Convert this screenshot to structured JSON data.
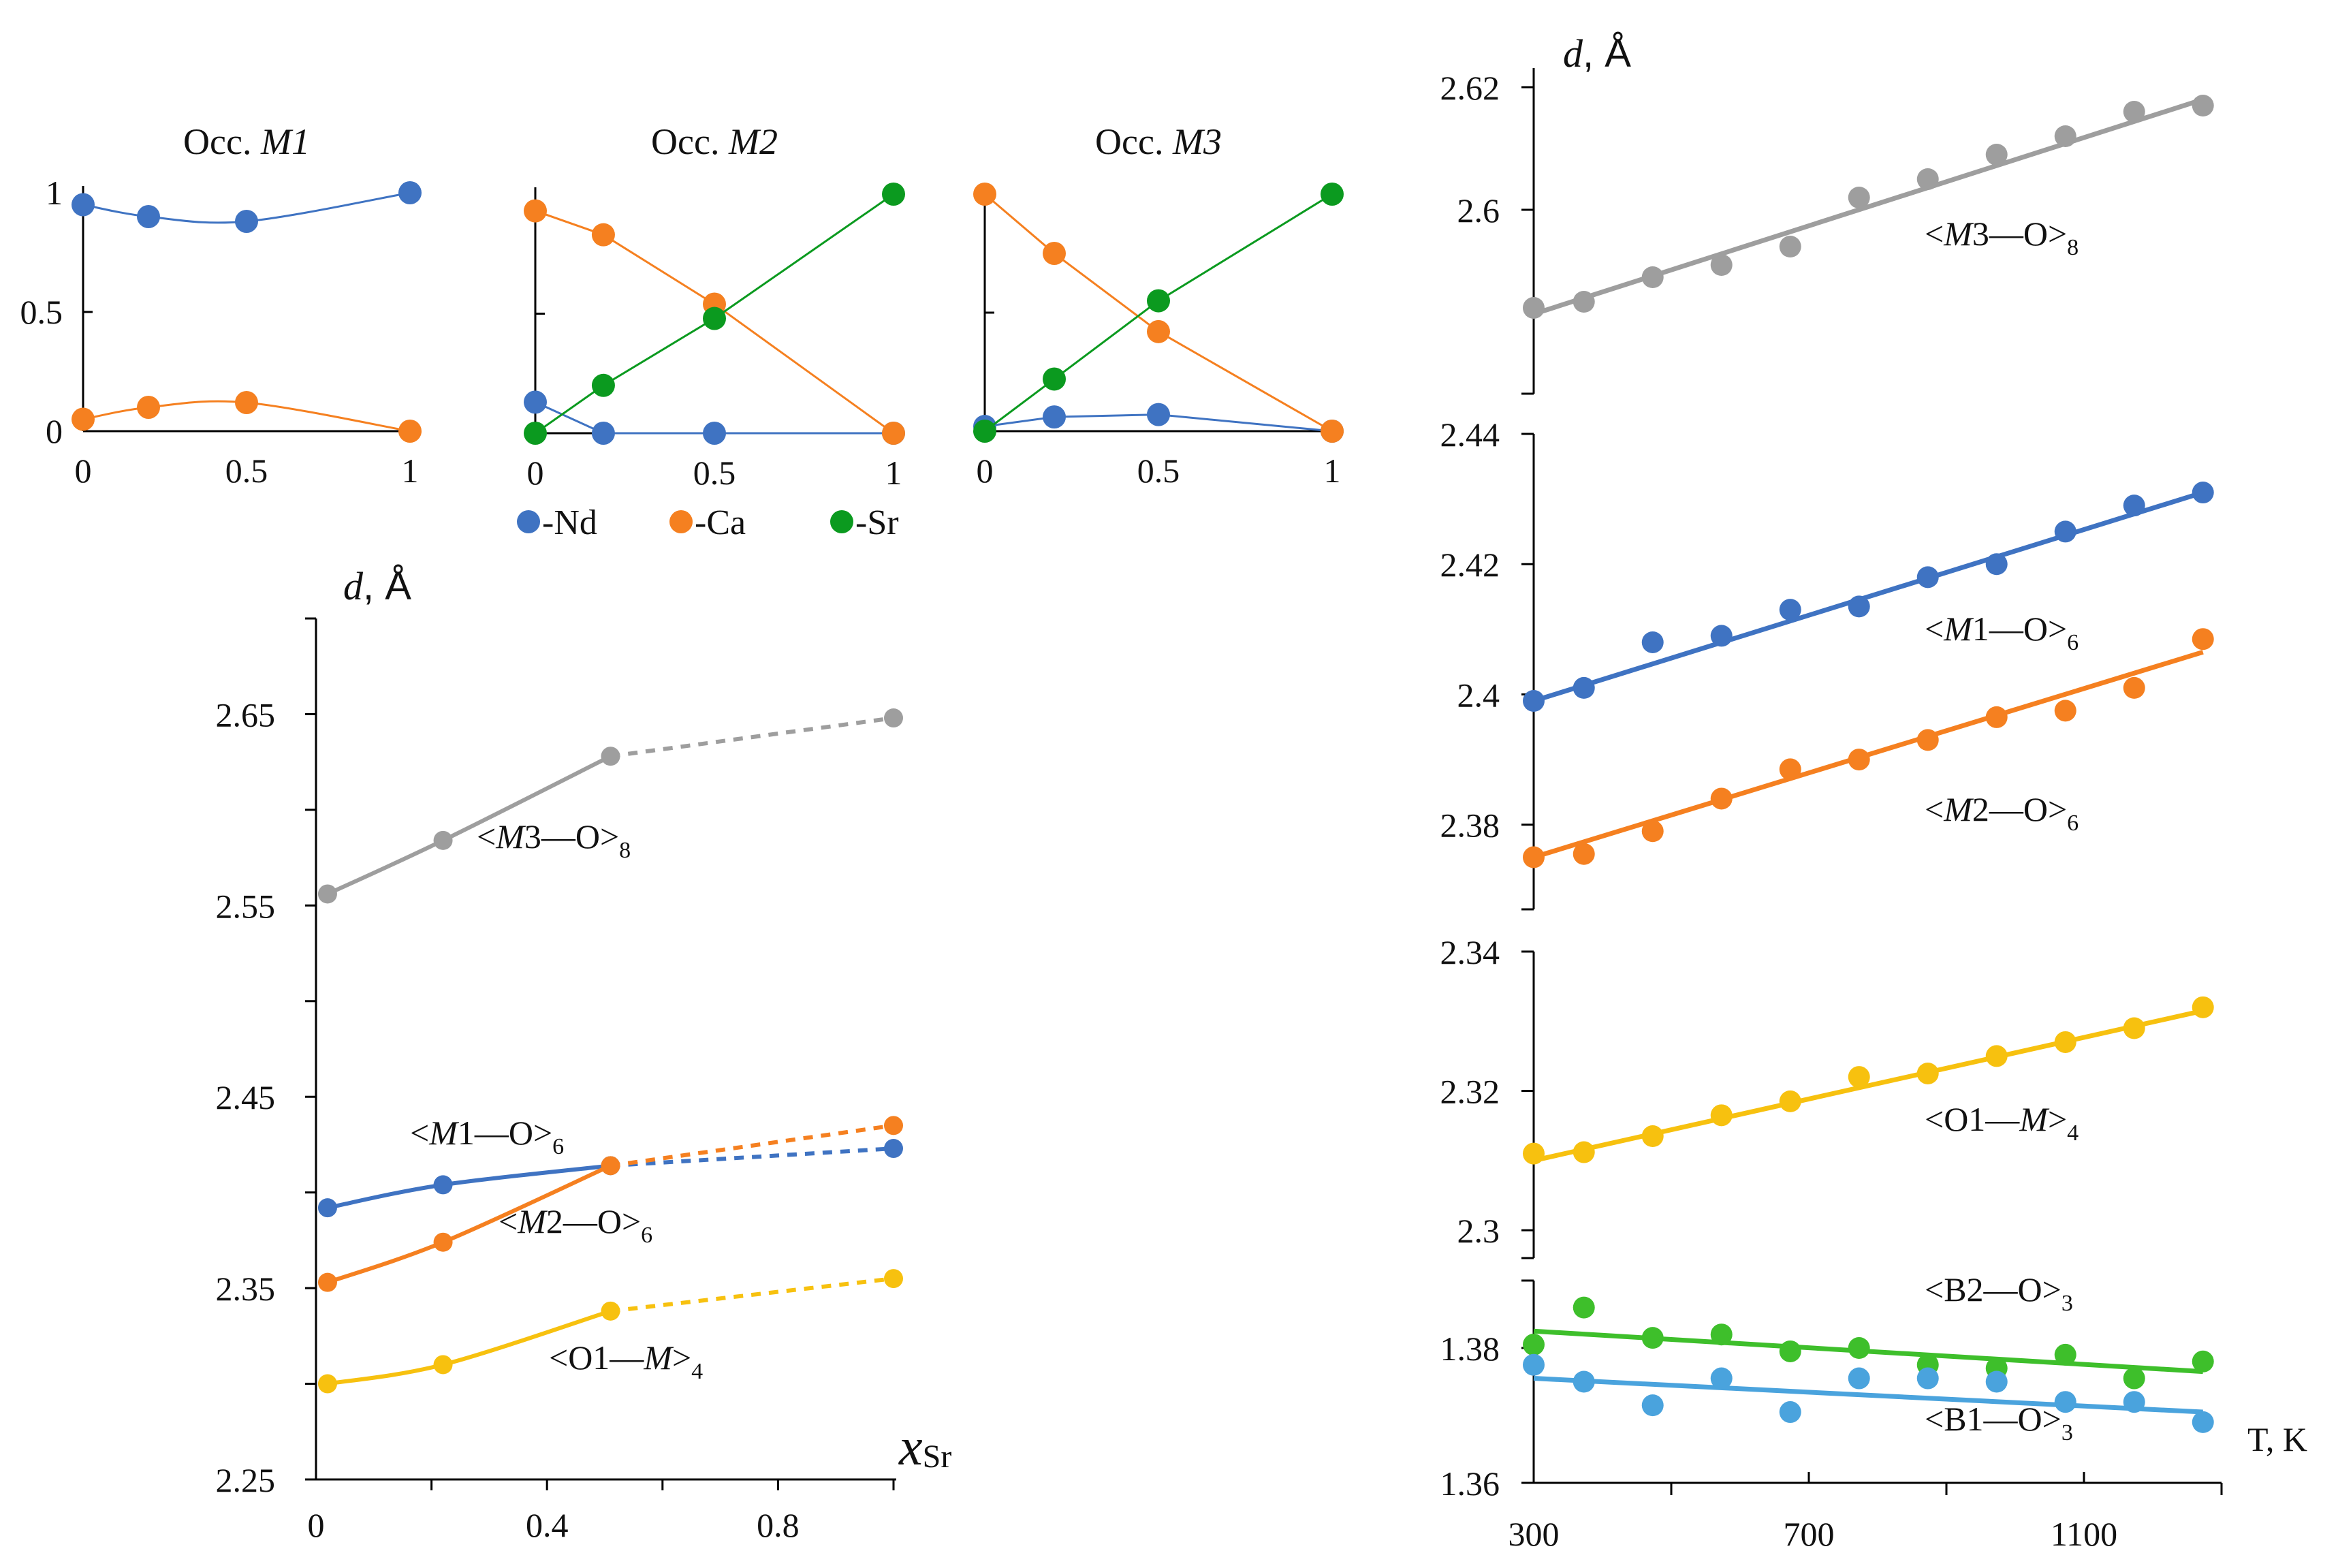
{
  "colors": {
    "Nd": "#3f73c2",
    "Ca": "#f58020",
    "Sr": "#0b9a1f",
    "M1": "#3f73c2",
    "M2": "#f58020",
    "M3": "#9e9e9e",
    "O1": "#f7c10f",
    "B1": "#4aa3dd",
    "B2": "#3ebf2b"
  },
  "legend": [
    {
      "key": "Nd",
      "label": "-Nd"
    },
    {
      "key": "Ca",
      "label": "-Ca"
    },
    {
      "key": "Sr",
      "label": "-Sr"
    }
  ],
  "chart_data": [
    {
      "id": "occ_m1",
      "type": "line",
      "title_prefix": "Occ. ",
      "title_site": "M1",
      "xlim": [
        0,
        1
      ],
      "ylim": [
        0,
        1
      ],
      "x_ticks": [
        "0",
        "0.5",
        "1"
      ],
      "y_ticks": [
        "0",
        "0.5",
        "1"
      ],
      "series": [
        {
          "name": "Nd",
          "x": [
            0,
            0.2,
            0.5,
            1
          ],
          "values": [
            0.95,
            0.9,
            0.88,
            1.0
          ]
        },
        {
          "name": "Ca",
          "x": [
            0,
            0.2,
            0.5,
            1
          ],
          "values": [
            0.05,
            0.1,
            0.12,
            0.0
          ]
        }
      ]
    },
    {
      "id": "occ_m2",
      "type": "line",
      "title_prefix": "Occ. ",
      "title_site": "M2",
      "xlim": [
        0,
        1
      ],
      "ylim": [
        0,
        1
      ],
      "x_ticks": [
        "0",
        "0.5",
        "1"
      ],
      "series": [
        {
          "name": "Nd",
          "x": [
            0,
            0.19,
            0.5,
            1
          ],
          "values": [
            0.13,
            0.0,
            0.0,
            0.0
          ]
        },
        {
          "name": "Ca",
          "x": [
            0,
            0.19,
            0.5,
            1
          ],
          "values": [
            0.93,
            0.83,
            0.54,
            0.0
          ]
        },
        {
          "name": "Sr",
          "x": [
            0,
            0.19,
            0.5,
            1
          ],
          "values": [
            0.0,
            0.2,
            0.48,
            1.0
          ]
        }
      ]
    },
    {
      "id": "occ_m3",
      "type": "line",
      "title_prefix": "Occ. ",
      "title_site": "M3",
      "xlim": [
        0,
        1
      ],
      "ylim": [
        0,
        1
      ],
      "x_ticks": [
        "0",
        "0.5",
        "1"
      ],
      "series": [
        {
          "name": "Nd",
          "x": [
            0,
            0.2,
            0.5,
            1
          ],
          "values": [
            0.02,
            0.06,
            0.07,
            0.0
          ]
        },
        {
          "name": "Ca",
          "x": [
            0,
            0.2,
            0.5,
            1
          ],
          "values": [
            1.0,
            0.75,
            0.42,
            0.0
          ]
        },
        {
          "name": "Sr",
          "x": [
            0,
            0.2,
            0.5,
            1
          ],
          "values": [
            0.0,
            0.22,
            0.55,
            1.0
          ]
        }
      ]
    },
    {
      "id": "d_vs_xsr",
      "type": "line",
      "ylabel_italic": "d",
      "ylabel_unit": ", Å",
      "xlabel": "x",
      "xlabel_sub": "Sr",
      "xlim": [
        0,
        1
      ],
      "ylim": [
        2.25,
        2.7
      ],
      "x_ticks": [
        {
          "v": 0,
          "label": "0"
        },
        {
          "v": 0.4,
          "label": "0.4"
        },
        {
          "v": 0.8,
          "label": "0.8"
        }
      ],
      "y_ticks": [
        {
          "v": 2.25,
          "label": "2.25"
        },
        {
          "v": 2.35,
          "label": "2.35"
        },
        {
          "v": 2.45,
          "label": "2.45"
        },
        {
          "v": 2.55,
          "label": "2.55"
        },
        {
          "v": 2.65,
          "label": "2.65"
        }
      ],
      "series": [
        {
          "name": "M3",
          "label_pre": "<",
          "label_it": "M",
          "label_mid": "3—O>",
          "label_sub": "8",
          "x": [
            0.02,
            0.22,
            0.51
          ],
          "values": [
            2.556,
            2.584,
            2.628
          ],
          "extension": {
            "x": [
              0.51,
              1.0
            ],
            "values": [
              2.628,
              2.648
            ]
          }
        },
        {
          "name": "M1",
          "label_pre": "<",
          "label_it": "M",
          "label_mid": "1—O>",
          "label_sub": "6",
          "x": [
            0.02,
            0.22,
            0.51
          ],
          "values": [
            2.392,
            2.404,
            2.414
          ],
          "extension": {
            "x": [
              0.51,
              1.0
            ],
            "values": [
              2.414,
              2.423
            ]
          }
        },
        {
          "name": "M2",
          "label_pre": "<",
          "label_it": "M",
          "label_mid": "2—O>",
          "label_sub": "6",
          "x": [
            0.02,
            0.22,
            0.51
          ],
          "values": [
            2.353,
            2.374,
            2.414
          ],
          "extension": {
            "x": [
              0.51,
              1.0
            ],
            "values": [
              2.414,
              2.435
            ]
          }
        },
        {
          "name": "O1",
          "label_pre": "<O1—",
          "label_it": "M",
          "label_mid": ">",
          "label_sub": "4",
          "x": [
            0.02,
            0.22,
            0.51
          ],
          "values": [
            2.3,
            2.31,
            2.338
          ],
          "extension": {
            "x": [
              0.51,
              1.0
            ],
            "values": [
              2.338,
              2.355
            ]
          }
        }
      ]
    },
    {
      "id": "d_vs_T",
      "type": "scatter",
      "ylabel_italic": "d",
      "ylabel_unit": ", Å",
      "xlabel": "T, K",
      "xlim": [
        300,
        1300
      ],
      "x_ticks": [
        {
          "v": 300,
          "label": "300"
        },
        {
          "v": 700,
          "label": "700"
        },
        {
          "v": 1100,
          "label": "1100"
        }
      ],
      "x_minor_ticks": [
        500,
        900,
        1300
      ],
      "segments": [
        {
          "name": "M3",
          "ylim": [
            2.57,
            2.62
          ],
          "y_ticks": [
            {
              "v": 2.6,
              "label": "2.6"
            },
            {
              "v": 2.62,
              "label": "2.62"
            }
          ]
        },
        {
          "name": "M1M2",
          "ylim": [
            2.367,
            2.44
          ],
          "y_ticks": [
            {
              "v": 2.38,
              "label": "2.38"
            },
            {
              "v": 2.4,
              "label": "2.4"
            },
            {
              "v": 2.42,
              "label": "2.42"
            },
            {
              "v": 2.44,
              "label": "2.44"
            }
          ]
        },
        {
          "name": "O1",
          "ylim": [
            2.296,
            2.34
          ],
          "y_ticks": [
            {
              "v": 2.3,
              "label": "2.3"
            },
            {
              "v": 2.32,
              "label": "2.32"
            },
            {
              "v": 2.34,
              "label": "2.34"
            }
          ]
        },
        {
          "name": "B",
          "ylim": [
            1.36,
            1.39
          ],
          "y_ticks": [
            {
              "v": 1.36,
              "label": "1.36"
            },
            {
              "v": 1.38,
              "label": "1.38"
            }
          ]
        }
      ],
      "series": [
        {
          "name": "M3",
          "segment": "M3",
          "label_pre": "<",
          "label_it": "M",
          "label_mid": "3—O>",
          "label_sub": "8",
          "x": [
            300,
            373,
            473,
            573,
            673,
            773,
            873,
            973,
            1073,
            1173,
            1273
          ],
          "values": [
            2.584,
            2.585,
            2.589,
            2.591,
            2.594,
            2.602,
            2.605,
            2.609,
            2.612,
            2.616,
            2.617
          ],
          "fit": [
            2.583,
            2.618
          ]
        },
        {
          "name": "M1",
          "segment": "M1M2",
          "label_pre": "<",
          "label_it": "M",
          "label_mid": "1—O>",
          "label_sub": "6",
          "x": [
            300,
            373,
            473,
            573,
            673,
            773,
            873,
            973,
            1073,
            1173,
            1273
          ],
          "values": [
            2.399,
            2.401,
            2.408,
            2.409,
            2.413,
            2.4135,
            2.418,
            2.42,
            2.425,
            2.429,
            2.431
          ],
          "fit": [
            2.399,
            2.431
          ]
        },
        {
          "name": "M2",
          "segment": "M1M2",
          "label_pre": "<",
          "label_it": "M",
          "label_mid": "2—O>",
          "label_sub": "6",
          "x": [
            300,
            373,
            473,
            573,
            673,
            773,
            873,
            973,
            1073,
            1173,
            1273
          ],
          "values": [
            2.375,
            2.3755,
            2.379,
            2.384,
            2.3885,
            2.39,
            2.393,
            2.3965,
            2.3975,
            2.401,
            2.4085
          ],
          "fit": [
            2.375,
            2.4065
          ]
        },
        {
          "name": "O1",
          "segment": "O1",
          "label_pre": "<O1—",
          "label_it": "M",
          "label_mid": ">",
          "label_sub": "4",
          "x": [
            300,
            373,
            473,
            573,
            673,
            773,
            873,
            973,
            1073,
            1173,
            1273
          ],
          "values": [
            2.311,
            2.3112,
            2.3135,
            2.3165,
            2.3185,
            2.322,
            2.3225,
            2.325,
            2.327,
            2.329,
            2.332
          ],
          "fit": [
            2.31,
            2.3315
          ]
        },
        {
          "name": "B2",
          "segment": "B",
          "label_pre": "<B2—O>",
          "label_it": "",
          "label_mid": "",
          "label_sub": "3",
          "x": [
            300,
            373,
            473,
            573,
            673,
            773,
            873,
            973,
            1073,
            1173,
            1273
          ],
          "values": [
            1.3805,
            1.386,
            1.3815,
            1.382,
            1.3795,
            1.38,
            1.3775,
            1.377,
            1.379,
            1.3755,
            1.378
          ],
          "fit": [
            1.3825,
            1.3765
          ]
        },
        {
          "name": "B1",
          "segment": "B",
          "label_pre": "<B1—O>",
          "label_it": "",
          "label_mid": "",
          "label_sub": "3",
          "x": [
            300,
            373,
            473,
            573,
            673,
            773,
            873,
            973,
            1073,
            1173,
            1273
          ],
          "values": [
            1.3775,
            1.375,
            1.3715,
            1.3755,
            1.3705,
            1.3755,
            1.3755,
            1.375,
            1.372,
            1.372,
            1.369
          ],
          "fit": [
            1.3755,
            1.3705
          ]
        }
      ]
    }
  ]
}
